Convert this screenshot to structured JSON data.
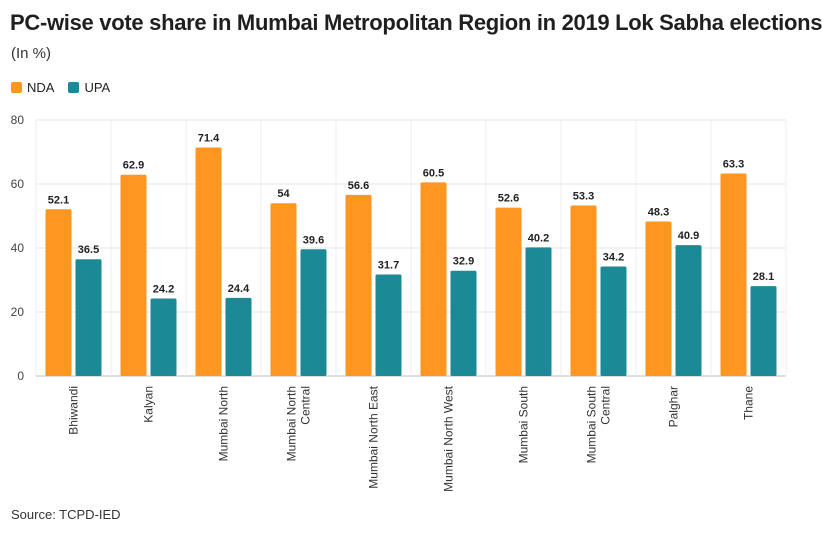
{
  "chart_data": {
    "type": "bar",
    "title": "PC-wise vote share in Mumbai Metropolitan Region in 2019 Lok Sabha elections",
    "subtitle": "(In %)",
    "categories": [
      "Bhiwandi",
      "Kalyan",
      "Mumbai North",
      "Mumbai North Central",
      "Mumbai North East",
      "Mumbai North West",
      "Mumbai South",
      "Mumbai South Central",
      "Palghar",
      "Thane"
    ],
    "category_label_lines": [
      [
        "Bhiwandi"
      ],
      [
        "Kalyan"
      ],
      [
        "Mumbai North"
      ],
      [
        "Mumbai North",
        "Central"
      ],
      [
        "Mumbai North East"
      ],
      [
        "Mumbai North West"
      ],
      [
        "Mumbai South"
      ],
      [
        "Mumbai South",
        "Central"
      ],
      [
        "Palghar"
      ],
      [
        "Thane"
      ]
    ],
    "series": [
      {
        "name": "NDA",
        "color": "#FF961F",
        "values": [
          52.1,
          62.9,
          71.4,
          54,
          56.6,
          60.5,
          52.6,
          53.3,
          48.3,
          63.3
        ]
      },
      {
        "name": "UPA",
        "color": "#1B8A96",
        "values": [
          36.5,
          24.2,
          24.4,
          39.6,
          31.7,
          32.9,
          40.2,
          34.2,
          40.9,
          28.1
        ]
      }
    ],
    "ylim": [
      0,
      80
    ],
    "yticks": [
      0,
      20,
      40,
      60,
      80
    ],
    "grid": true,
    "legend_position": "top-left",
    "source": "Source: TCPD-IED"
  }
}
